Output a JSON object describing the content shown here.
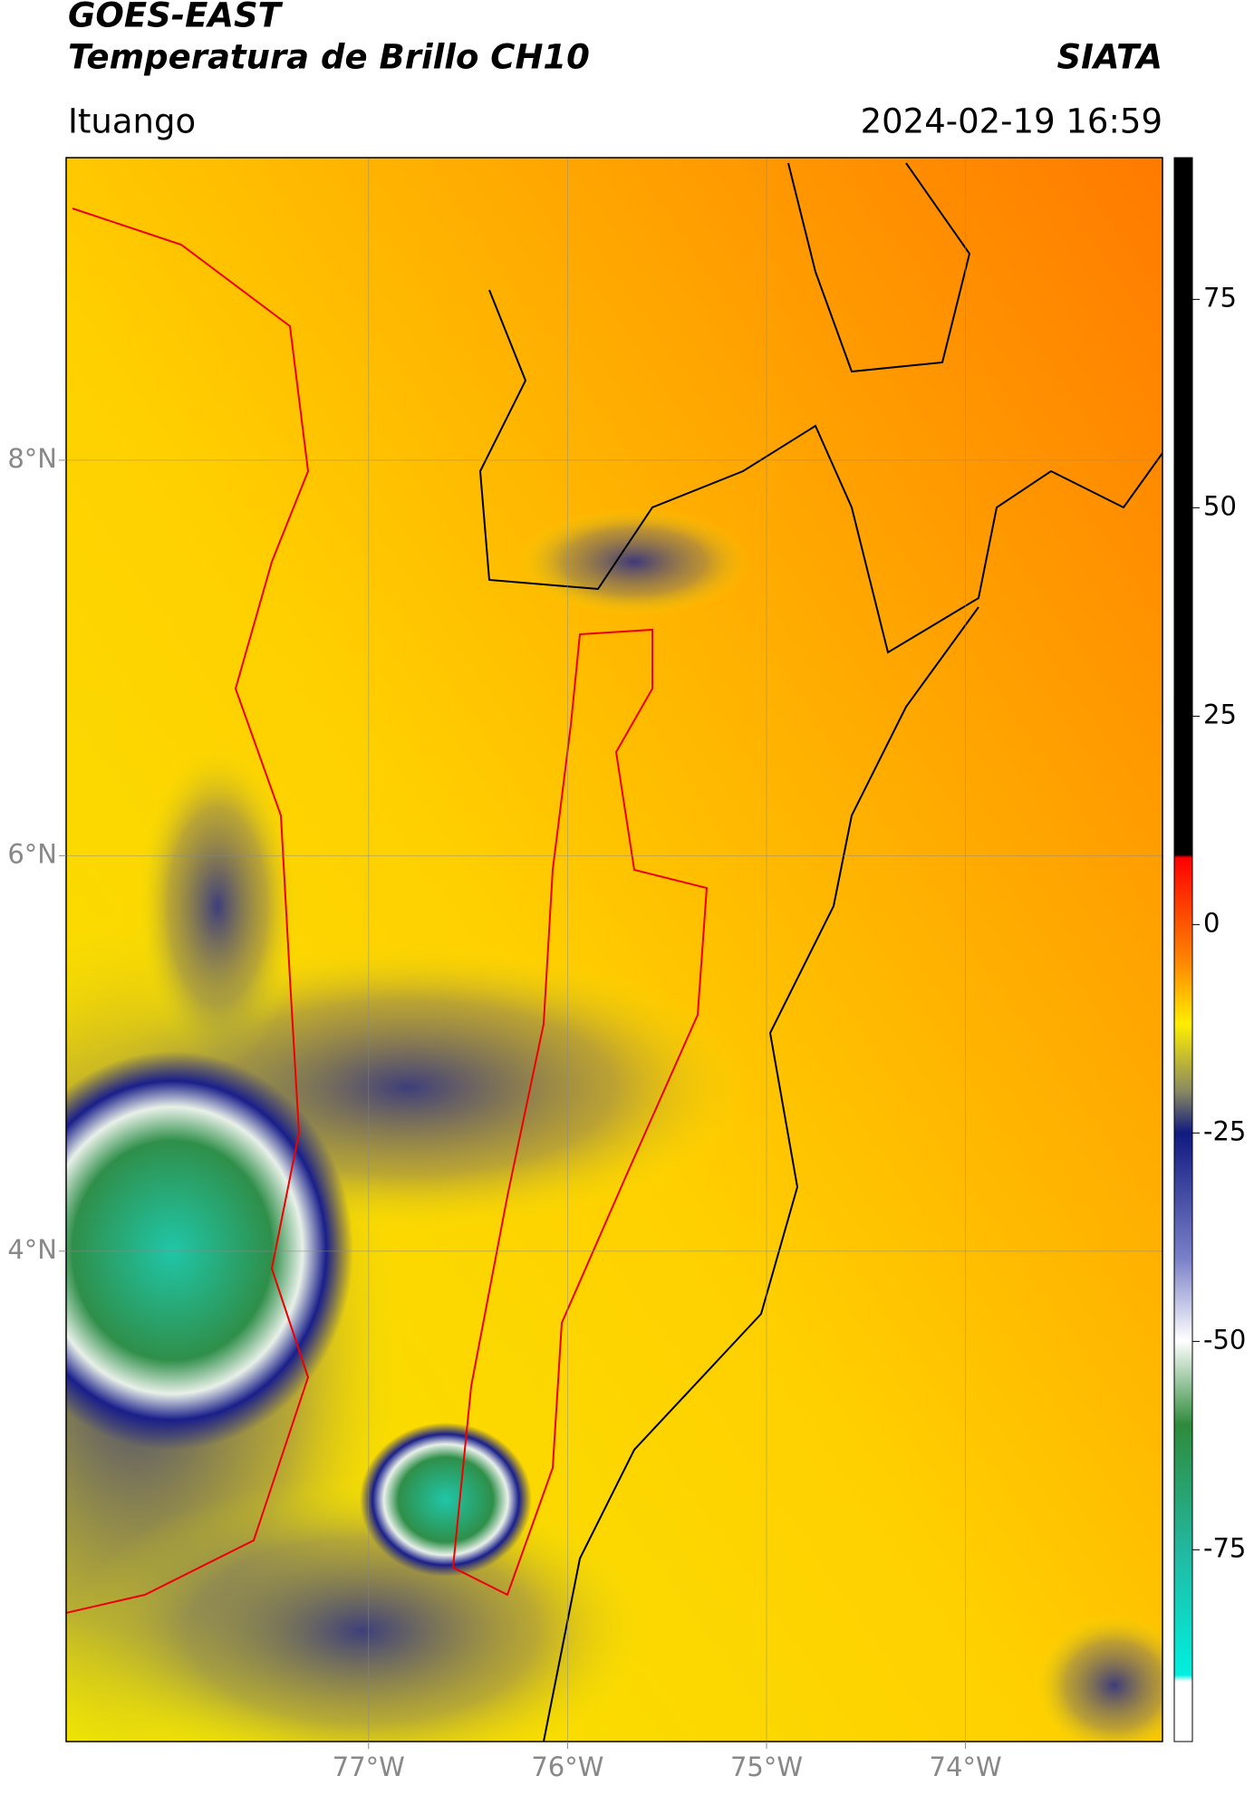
{
  "header": {
    "title": "GOES-EAST",
    "subtitle": "Temperatura de Brillo CH10",
    "brand": "SIATA",
    "location": "Ituango",
    "timestamp": "2024-02-19 16:59"
  },
  "map": {
    "type": "map",
    "xlim": [
      -78.52,
      -73.01
    ],
    "ylim": [
      1.52,
      9.53
    ],
    "xticks": [
      {
        "value": -77,
        "label": "77°W"
      },
      {
        "value": -76,
        "label": "76°W"
      },
      {
        "value": -75,
        "label": "75°W"
      },
      {
        "value": -74,
        "label": "74°W"
      }
    ],
    "yticks": [
      {
        "value": 4,
        "label": "4°N"
      },
      {
        "value": 6,
        "label": "6°N"
      },
      {
        "value": 8,
        "label": "8°N"
      }
    ],
    "grid": true
  },
  "colorbar": {
    "type": "colorbar",
    "lim": [
      -98,
      92
    ],
    "ticks": [
      -75,
      -50,
      -25,
      0,
      25,
      50,
      75
    ]
  }
}
